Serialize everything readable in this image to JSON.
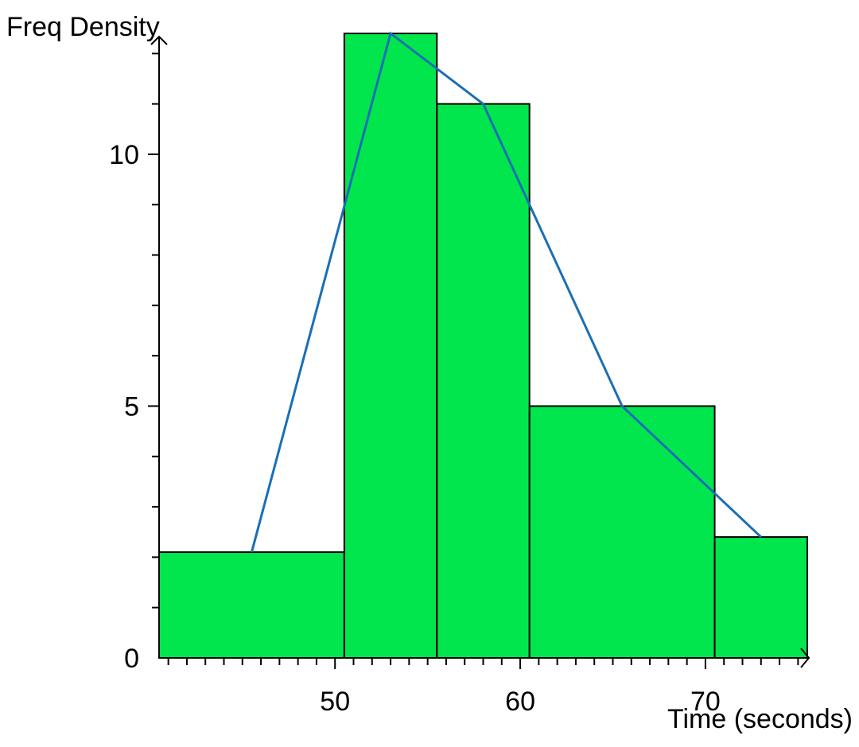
{
  "chart_data": {
    "type": "bar",
    "subtype": "histogram-with-frequency-polygon",
    "xlabel": "Time (seconds)",
    "ylabel": "Freq Density",
    "xlim": [
      40.5,
      75.5
    ],
    "ylim": [
      0,
      12.5
    ],
    "x_ticks": [
      50,
      60,
      70
    ],
    "x_tick_labels": [
      "50",
      "60",
      "70"
    ],
    "y_ticks": [
      0,
      5,
      10
    ],
    "y_tick_labels": [
      "0",
      "5",
      "10"
    ],
    "grid": false,
    "bar_color": "#00e64c",
    "bar_edge_color": "#000000",
    "line_color": "#1a6fb5",
    "bins": [
      {
        "start": 40.5,
        "end": 50.5,
        "density": 2.1
      },
      {
        "start": 50.5,
        "end": 55.5,
        "density": 12.4
      },
      {
        "start": 55.5,
        "end": 60.5,
        "density": 11.0
      },
      {
        "start": 60.5,
        "end": 70.5,
        "density": 5.0
      },
      {
        "start": 70.5,
        "end": 75.5,
        "density": 2.4
      }
    ],
    "polygon": {
      "x": [
        45.5,
        53,
        58,
        65.5,
        73
      ],
      "y": [
        2.1,
        12.4,
        11.0,
        5.0,
        2.4
      ]
    }
  }
}
